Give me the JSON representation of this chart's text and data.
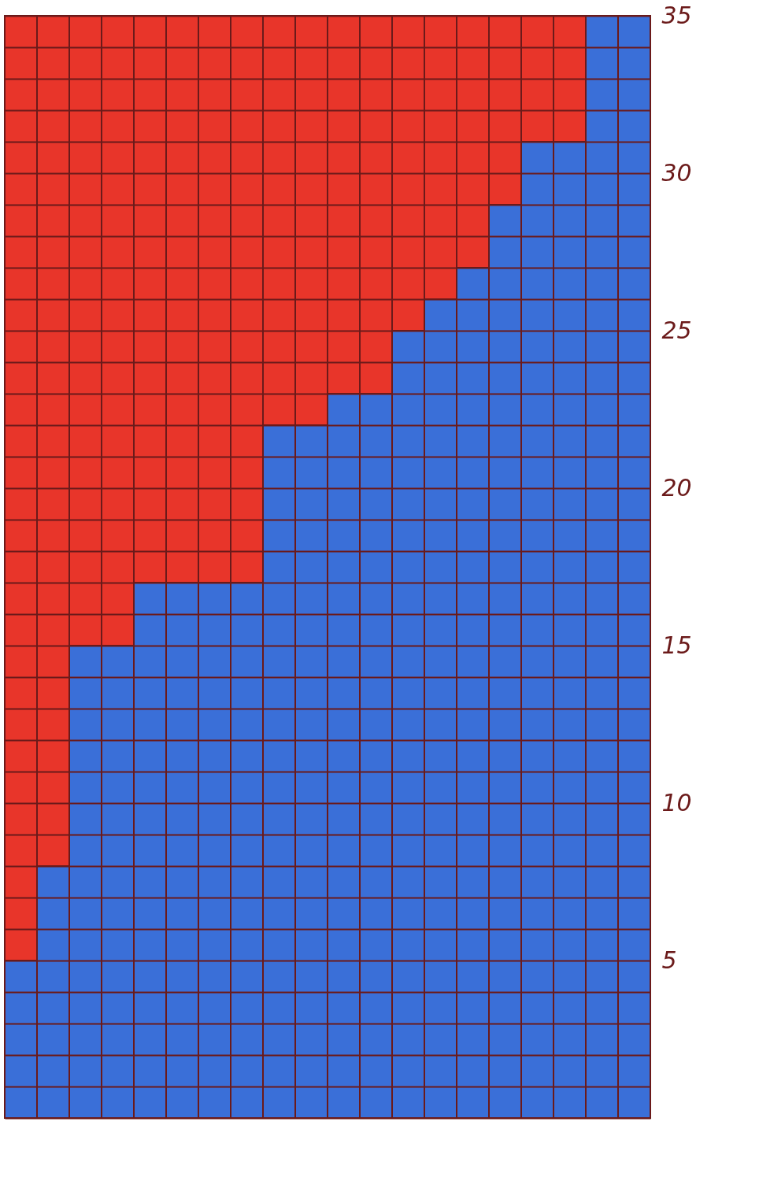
{
  "chart_data": {
    "type": "bar",
    "stacked": true,
    "categories": [
      null,
      null,
      null,
      null,
      null,
      null,
      null,
      null,
      null,
      null,
      null,
      null,
      null,
      null,
      null,
      null,
      null,
      null,
      null,
      null
    ],
    "series": [
      {
        "color": "#3a6fd8",
        "values": [
          5,
          8,
          15,
          15,
          17,
          17,
          17,
          17,
          22,
          22,
          23,
          23,
          25,
          26,
          27,
          29,
          31,
          31,
          35,
          35
        ]
      },
      {
        "color": "#e8352a",
        "values": [
          30,
          27,
          20,
          20,
          18,
          18,
          18,
          18,
          13,
          13,
          12,
          12,
          10,
          9,
          8,
          6,
          4,
          4,
          null,
          null
        ]
      }
    ],
    "ylim": [
      0,
      35
    ],
    "yticks": [
      {
        "value": 0,
        "label": null
      },
      {
        "value": 1,
        "label": null
      },
      {
        "value": 2,
        "label": null
      },
      {
        "value": 3,
        "label": null
      },
      {
        "value": 4,
        "label": null
      },
      5,
      {
        "value": 6,
        "label": null
      },
      {
        "value": 7,
        "label": null
      },
      {
        "value": 8,
        "label": null
      },
      {
        "value": 9,
        "label": null
      },
      10,
      {
        "value": 11,
        "label": null
      },
      {
        "value": 12,
        "label": null
      },
      {
        "value": 13,
        "label": null
      },
      {
        "value": 14,
        "label": null
      },
      15,
      {
        "value": 16,
        "label": null
      },
      {
        "value": 17,
        "label": null
      },
      {
        "value": 18,
        "label": null
      },
      {
        "value": 19,
        "label": null
      },
      20,
      {
        "value": 21,
        "label": null
      },
      {
        "value": 22,
        "label": null
      },
      {
        "value": 23,
        "label": null
      },
      {
        "value": 24,
        "label": null
      },
      25,
      {
        "value": 26,
        "label": null
      },
      {
        "value": 27,
        "label": null
      },
      {
        "value": 28,
        "label": null
      },
      {
        "value": 29,
        "label": null
      },
      30,
      {
        "value": 31,
        "label": null
      },
      {
        "value": 32,
        "label": null
      },
      {
        "value": 33,
        "label": null
      },
      {
        "value": 34,
        "label": null
      },
      35
    ],
    "grid": "y",
    "tick_labels": "y"
  }
}
